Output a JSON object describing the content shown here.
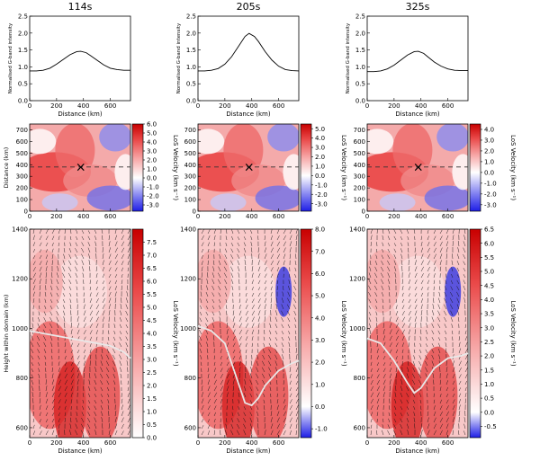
{
  "chart_data": [
    {
      "type": "line",
      "column": 0,
      "title": "114s",
      "xlabel": "Distance (km)",
      "ylabel": "Normalised G-band intensity",
      "xlim": [
        0,
        750
      ],
      "ylim": [
        0,
        2.5
      ],
      "x": [
        0,
        50,
        100,
        150,
        200,
        250,
        300,
        350,
        380,
        420,
        450,
        500,
        550,
        600,
        650,
        700,
        750
      ],
      "y": [
        0.88,
        0.88,
        0.9,
        0.96,
        1.08,
        1.22,
        1.36,
        1.45,
        1.46,
        1.42,
        1.34,
        1.2,
        1.06,
        0.96,
        0.92,
        0.9,
        0.9
      ]
    },
    {
      "type": "line",
      "column": 1,
      "title": "205s",
      "xlabel": "Distance (km)",
      "ylabel": "Normalised G-band intensity",
      "xlim": [
        0,
        750
      ],
      "ylim": [
        0,
        2.5
      ],
      "x": [
        0,
        50,
        100,
        150,
        200,
        250,
        300,
        350,
        380,
        420,
        450,
        500,
        550,
        600,
        650,
        700,
        750
      ],
      "y": [
        0.88,
        0.88,
        0.9,
        0.95,
        1.08,
        1.3,
        1.6,
        1.9,
        1.99,
        1.9,
        1.75,
        1.45,
        1.2,
        1.02,
        0.92,
        0.89,
        0.88
      ]
    },
    {
      "type": "line",
      "column": 2,
      "title": "325s",
      "xlabel": "Distance (km)",
      "ylabel": "Normalised G-band intensity",
      "xlim": [
        0,
        750
      ],
      "ylim": [
        0,
        2.5
      ],
      "x": [
        0,
        50,
        100,
        150,
        200,
        250,
        300,
        350,
        380,
        420,
        450,
        500,
        550,
        600,
        650,
        700,
        750
      ],
      "y": [
        0.86,
        0.86,
        0.88,
        0.94,
        1.05,
        1.2,
        1.35,
        1.45,
        1.46,
        1.4,
        1.3,
        1.14,
        1.02,
        0.94,
        0.9,
        0.89,
        0.89
      ]
    },
    {
      "type": "heatmap",
      "column": 0,
      "xlabel": "",
      "ylabel": "Distance (km)",
      "xlim": [
        0,
        750
      ],
      "ylim": [
        0,
        750
      ],
      "x_ticks": [
        0,
        200,
        400,
        600
      ],
      "y_ticks": [
        0,
        100,
        200,
        300,
        400,
        500,
        600,
        700
      ],
      "colorbar_label": "LoS Velocity (km s⁻¹)",
      "colorbar_range": [
        -3.7,
        6.0
      ],
      "colorbar_ticks": [
        "6.0",
        "5.0",
        "4.0",
        "3.0",
        "2.0",
        "1.0",
        "0.0",
        "-1.0",
        "-2.0",
        "-3.0"
      ],
      "marker": {
        "x": 380,
        "y": 380,
        "symbol": "×"
      },
      "dashed_line_y": 380
    },
    {
      "type": "heatmap",
      "column": 1,
      "xlabel": "",
      "ylabel": "",
      "xlim": [
        0,
        750
      ],
      "ylim": [
        0,
        750
      ],
      "x_ticks": [
        0,
        200,
        400,
        600
      ],
      "y_ticks": [
        0,
        100,
        200,
        300,
        400,
        500,
        600,
        700
      ],
      "colorbar_label": "LoS Velocity (km s⁻¹)",
      "colorbar_range": [
        -3.8,
        5.5
      ],
      "colorbar_ticks": [
        "5.0",
        "4.0",
        "3.0",
        "2.0",
        "1.0",
        "0.0",
        "-1.0",
        "-2.0",
        "-3.0"
      ],
      "marker": {
        "x": 380,
        "y": 380,
        "symbol": "×"
      },
      "dashed_line_y": 380
    },
    {
      "type": "heatmap",
      "column": 2,
      "xlabel": "",
      "ylabel": "",
      "xlim": [
        0,
        750
      ],
      "ylim": [
        0,
        750
      ],
      "x_ticks": [
        0,
        200,
        400,
        600
      ],
      "y_ticks": [
        0,
        100,
        200,
        300,
        400,
        500,
        600,
        700
      ],
      "colorbar_label": "LoS Velocity (km s⁻¹)",
      "colorbar_range": [
        -3.6,
        4.5
      ],
      "colorbar_ticks": [
        "4.0",
        "3.0",
        "2.0",
        "1.0",
        "0.0",
        "-1.0",
        "-2.0",
        "-3.0"
      ],
      "marker": {
        "x": 380,
        "y": 380,
        "symbol": "×"
      },
      "dashed_line_y": 380
    },
    {
      "type": "heatmap",
      "column": 0,
      "xlabel": "Distance (km)",
      "ylabel": "Height within domain (km)",
      "xlim": [
        0,
        750
      ],
      "ylim": [
        560,
        1400
      ],
      "x_ticks": [
        0,
        200,
        400,
        600
      ],
      "y_ticks": [
        600,
        800,
        1000,
        1200,
        1400
      ],
      "colorbar_label": "LoS Velocity (km s⁻¹)",
      "colorbar_range": [
        0,
        8.0
      ],
      "colorbar_ticks": [
        "7.5",
        "7.0",
        "6.5",
        "6.0",
        "5.5",
        "5.0",
        "4.5",
        "4.0",
        "3.5",
        "3.0",
        "2.5",
        "2.0",
        "1.5",
        "1.0",
        "0.5",
        "0.0"
      ],
      "contour_x": [
        0,
        100,
        200,
        300,
        400,
        500,
        600,
        700,
        750
      ],
      "contour_y": [
        990,
        980,
        970,
        960,
        950,
        940,
        930,
        905,
        880
      ],
      "vector_field": "velocity arrows"
    },
    {
      "type": "heatmap",
      "column": 1,
      "xlabel": "Distance (km)",
      "ylabel": "",
      "xlim": [
        0,
        750
      ],
      "ylim": [
        560,
        1400
      ],
      "x_ticks": [
        0,
        200,
        400,
        600
      ],
      "y_ticks": [
        600,
        800,
        1000,
        1200,
        1400
      ],
      "colorbar_label": "LoS Velocity (km s⁻¹)",
      "colorbar_range": [
        -1.4,
        8.0
      ],
      "colorbar_ticks": [
        "8.0",
        "7.0",
        "6.0",
        "5.0",
        "4.0",
        "3.0",
        "2.0",
        "1.0",
        "0.0",
        "-1.0"
      ],
      "contour_x": [
        0,
        100,
        200,
        300,
        350,
        400,
        450,
        500,
        600,
        700,
        750
      ],
      "contour_y": [
        1010,
        990,
        940,
        780,
        700,
        690,
        720,
        770,
        830,
        860,
        870
      ],
      "vector_field": "velocity arrows"
    },
    {
      "type": "heatmap",
      "column": 2,
      "xlabel": "Distance (km)",
      "ylabel": "",
      "xlim": [
        0,
        750
      ],
      "ylim": [
        560,
        1400
      ],
      "x_ticks": [
        0,
        200,
        400,
        600
      ],
      "y_ticks": [
        600,
        800,
        1000,
        1200,
        1400
      ],
      "colorbar_label": "LoS Velocity (km s⁻¹)",
      "colorbar_range": [
        -0.9,
        6.5
      ],
      "colorbar_ticks": [
        "6.5",
        "6.0",
        "5.5",
        "5.0",
        "4.5",
        "4.0",
        "3.5",
        "3.0",
        "2.5",
        "2.0",
        "1.5",
        "1.0",
        "0.5",
        "0.0",
        "-0.5"
      ],
      "contour_x": [
        0,
        100,
        200,
        300,
        350,
        400,
        500,
        600,
        700,
        750
      ],
      "contour_y": [
        960,
        940,
        870,
        780,
        740,
        760,
        840,
        880,
        890,
        900
      ],
      "vector_field": "velocity arrows"
    }
  ]
}
